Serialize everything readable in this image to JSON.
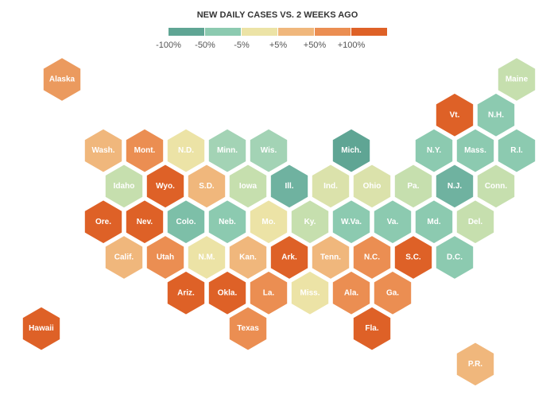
{
  "title": "NEW DAILY CASES VS. 2 WEEKS AGO",
  "legend": [
    {
      "label": "-100%",
      "color": "#5fa594"
    },
    {
      "label": "-50%",
      "color": "#8ccab0"
    },
    {
      "label": "-5%",
      "color": "#ece3a6"
    },
    {
      "label": "+5%",
      "color": "#f0b77c"
    },
    {
      "label": "+50%",
      "color": "#eb8e52"
    },
    {
      "label": "+100%",
      "color": "#de6127"
    }
  ],
  "states": [
    {
      "label": "Alaska",
      "color": "#eb9a5e"
    },
    {
      "label": "Maine",
      "color": "#c6dfae"
    },
    {
      "label": "Vt.",
      "color": "#de6127"
    },
    {
      "label": "N.H.",
      "color": "#8ccab0"
    },
    {
      "label": "Wash.",
      "color": "#f0b77c"
    },
    {
      "label": "Mont.",
      "color": "#eb8e52"
    },
    {
      "label": "N.D.",
      "color": "#ece3a6"
    },
    {
      "label": "Minn.",
      "color": "#a3d3b5"
    },
    {
      "label": "Wis.",
      "color": "#a3d3b5"
    },
    {
      "label": "Mich.",
      "color": "#5fa594"
    },
    {
      "label": "N.Y.",
      "color": "#8ccab0"
    },
    {
      "label": "Mass.",
      "color": "#8ccab0"
    },
    {
      "label": "R.I.",
      "color": "#8ccab0"
    },
    {
      "label": "Idaho",
      "color": "#c6dfae"
    },
    {
      "label": "Wyo.",
      "color": "#de6127"
    },
    {
      "label": "S.D.",
      "color": "#f0b77c"
    },
    {
      "label": "Iowa",
      "color": "#c6dfae"
    },
    {
      "label": "Ill.",
      "color": "#6fb2a0"
    },
    {
      "label": "Ind.",
      "color": "#dbe2ab"
    },
    {
      "label": "Ohio",
      "color": "#dbe2ab"
    },
    {
      "label": "Pa.",
      "color": "#c6dfae"
    },
    {
      "label": "N.J.",
      "color": "#6fb2a0"
    },
    {
      "label": "Conn.",
      "color": "#c6dfae"
    },
    {
      "label": "Ore.",
      "color": "#de6127"
    },
    {
      "label": "Nev.",
      "color": "#de6127"
    },
    {
      "label": "Colo.",
      "color": "#7dbfa8"
    },
    {
      "label": "Neb.",
      "color": "#8ccab0"
    },
    {
      "label": "Mo.",
      "color": "#ece3a6"
    },
    {
      "label": "Ky.",
      "color": "#c6dfae"
    },
    {
      "label": "W.Va.",
      "color": "#8ccab0"
    },
    {
      "label": "Va.",
      "color": "#8ccab0"
    },
    {
      "label": "Md.",
      "color": "#8ccab0"
    },
    {
      "label": "Del.",
      "color": "#c6dfae"
    },
    {
      "label": "Calif.",
      "color": "#f0b77c"
    },
    {
      "label": "Utah",
      "color": "#eb8e52"
    },
    {
      "label": "N.M.",
      "color": "#ece3a6"
    },
    {
      "label": "Kan.",
      "color": "#f0b77c"
    },
    {
      "label": "Ark.",
      "color": "#de6127"
    },
    {
      "label": "Tenn.",
      "color": "#f0b77c"
    },
    {
      "label": "N.C.",
      "color": "#eb8e52"
    },
    {
      "label": "S.C.",
      "color": "#de6127"
    },
    {
      "label": "D.C.",
      "color": "#8ccab0"
    },
    {
      "label": "Ariz.",
      "color": "#de6127"
    },
    {
      "label": "Okla.",
      "color": "#de6127"
    },
    {
      "label": "La.",
      "color": "#eb8e52"
    },
    {
      "label": "Miss.",
      "color": "#ece3a6"
    },
    {
      "label": "Ala.",
      "color": "#eb8e52"
    },
    {
      "label": "Ga.",
      "color": "#eb8e52"
    },
    {
      "label": "Hawaii",
      "color": "#de6127"
    },
    {
      "label": "Texas",
      "color": "#eb8e52"
    },
    {
      "label": "Fla.",
      "color": "#de6127"
    },
    {
      "label": "P.R.",
      "color": "#f0b77c"
    }
  ]
}
